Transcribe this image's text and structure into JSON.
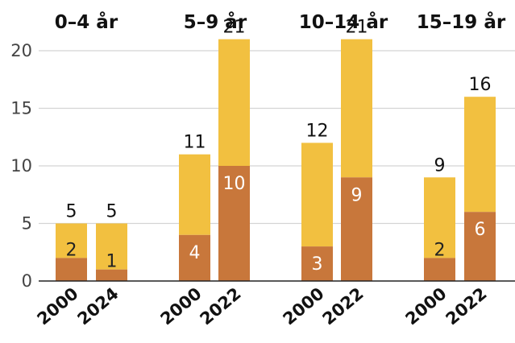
{
  "chart_data": {
    "type": "bar",
    "stacked": true,
    "groups": [
      {
        "title": "0–4 år",
        "categories": [
          "2000",
          "2024"
        ],
        "lower": [
          2,
          1
        ],
        "total": [
          5,
          5
        ]
      },
      {
        "title": "5–9 år",
        "categories": [
          "2000",
          "2022"
        ],
        "lower": [
          4,
          10
        ],
        "total": [
          11,
          21
        ]
      },
      {
        "title": "10–14 år",
        "categories": [
          "2000",
          "2022"
        ],
        "lower": [
          3,
          9
        ],
        "total": [
          12,
          21
        ]
      },
      {
        "title": "15–19 år",
        "categories": [
          "2000",
          "2022"
        ],
        "lower": [
          2,
          6
        ],
        "total": [
          9,
          16
        ]
      }
    ],
    "yticks": [
      "0",
      "5",
      "10",
      "15",
      "20"
    ],
    "ylim": [
      0,
      21
    ],
    "grid": true,
    "colors": {
      "lower": "#c8773b",
      "upper": "#f2c040",
      "inner_label_dark": "#222222",
      "inner_label_light": "#ffffff"
    }
  }
}
